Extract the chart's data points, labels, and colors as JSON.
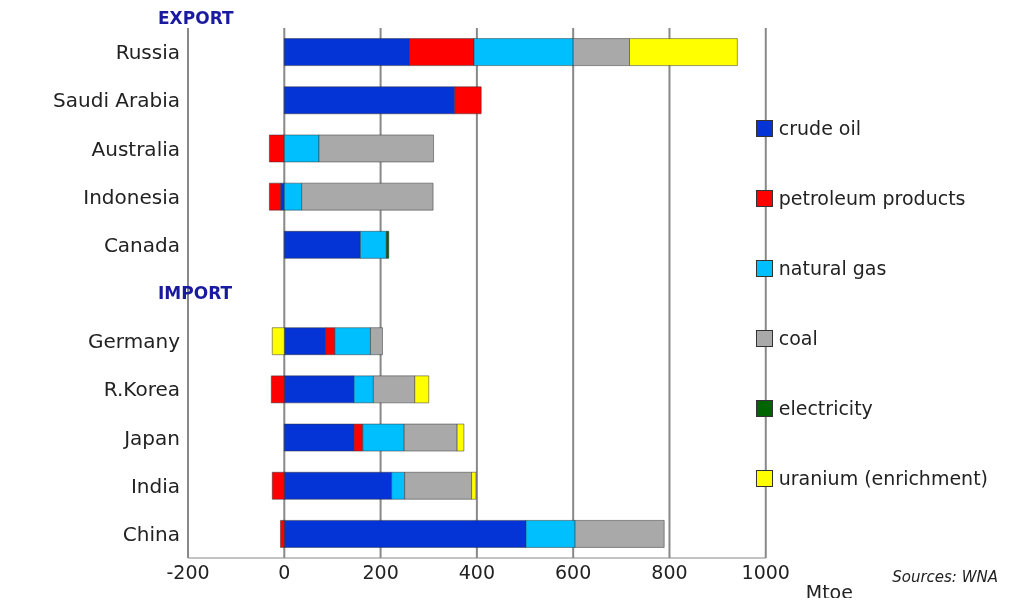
{
  "chart_data": {
    "type": "bar",
    "orientation": "horizontal",
    "stacked": true,
    "categories": [
      "Russia",
      "Saudi Arabia",
      "Australia",
      "Indonesia",
      "Canada",
      null,
      "Germany",
      "R.Korea",
      "Japan",
      "India",
      "China"
    ],
    "series": [
      {
        "name": "crude oil",
        "color": "#0433d6",
        "values": [
          260,
          354,
          null,
          -8,
          158,
          null,
          86,
          145,
          145,
          223,
          502
        ]
      },
      {
        "name": "petroleum products",
        "color": "#ff0000",
        "values": [
          134,
          55,
          -31,
          -23,
          null,
          null,
          19,
          -27,
          18,
          -25,
          -8
        ]
      },
      {
        "name": "natural gas",
        "color": "#00bfff",
        "values": [
          206,
          null,
          72,
          36,
          54,
          null,
          74,
          40,
          86,
          27,
          102
        ]
      },
      {
        "name": "coal",
        "color": "#a9a9a9",
        "values": [
          117,
          null,
          238,
          273,
          null,
          null,
          25,
          86,
          110,
          139,
          185
        ]
      },
      {
        "name": "electricity",
        "color": "#006400",
        "values": [
          null,
          null,
          null,
          null,
          5,
          null,
          null,
          null,
          null,
          null,
          null
        ]
      },
      {
        "name": "uranium (enrichment)",
        "color": "#ffff00",
        "values": [
          224,
          null,
          null,
          null,
          null,
          null,
          -25,
          29,
          14,
          9,
          null
        ]
      }
    ],
    "xlim": [
      -200,
      1000
    ],
    "xticks": [
      -200,
      0,
      200,
      400,
      600,
      800,
      1000
    ],
    "xlabel": "Mtoe",
    "grid": "x",
    "legend": "right",
    "annotations": [
      "EXPORT",
      "IMPORT",
      "Sources: WNA"
    ]
  }
}
